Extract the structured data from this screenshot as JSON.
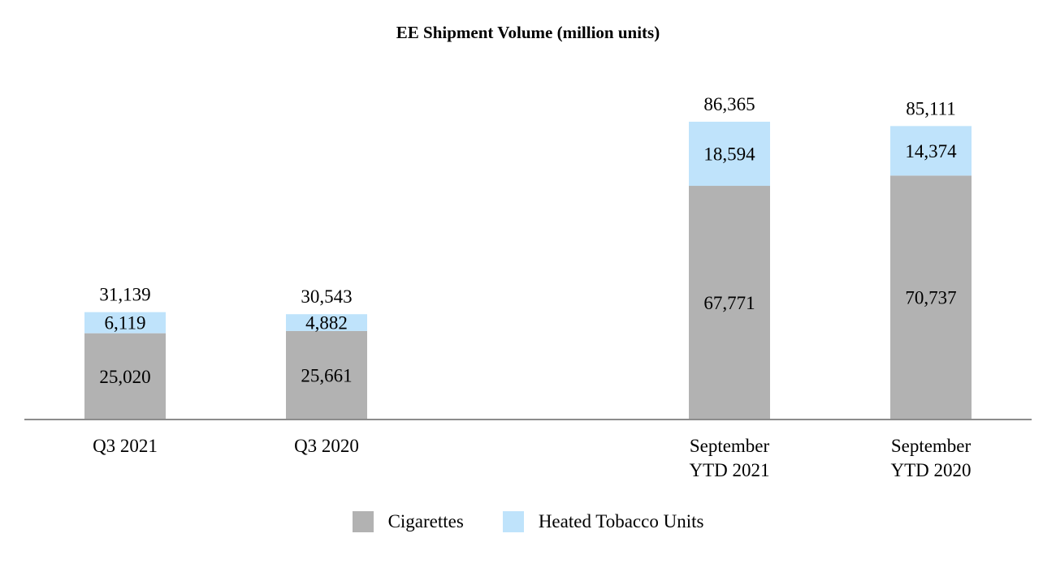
{
  "chart_data": {
    "type": "bar",
    "stacked": true,
    "title": "EE Shipment Volume (million units)",
    "categories": [
      [
        "Q3 2021"
      ],
      [
        "Q3 2020"
      ],
      [
        "September",
        "YTD 2021"
      ],
      [
        "September",
        "YTD 2020"
      ]
    ],
    "series": [
      {
        "name": "Cigarettes",
        "color": "#b2b2b2",
        "values": [
          25020,
          25661,
          67771,
          70737
        ]
      },
      {
        "name": "Heated Tobacco Units",
        "color": "#bfe3fb",
        "values": [
          6119,
          4882,
          18594,
          14374
        ]
      }
    ],
    "totals": [
      31139,
      30543,
      86365,
      85111
    ],
    "value_labels": [
      [
        "25,020",
        "25,661",
        "67,771",
        "70,737"
      ],
      [
        "6,119",
        "4,882",
        "18,594",
        "14,374"
      ]
    ],
    "total_labels": [
      "31,139",
      "30,543",
      "86,365",
      "85,111"
    ],
    "ylim": [
      0,
      86365
    ],
    "legend_position": "bottom",
    "grid": false
  }
}
